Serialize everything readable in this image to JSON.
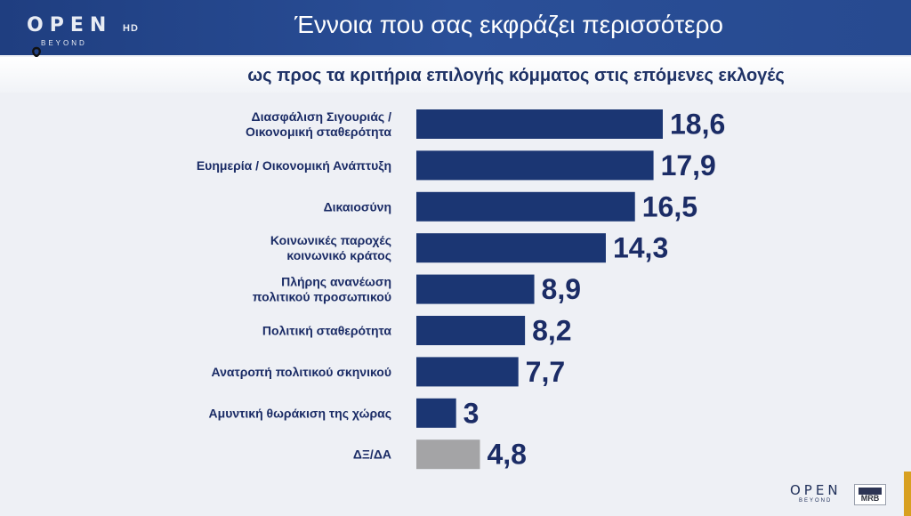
{
  "header": {
    "logo_text": "OPEN",
    "logo_hd": "HD",
    "logo_sub": "BEYOND",
    "title": "Έννοια που σας εκφράζει περισσότερο",
    "subtitle": "ως προς τα κριτήρια επιλογής κόμματος στις επόμενες εκλογές"
  },
  "footer": {
    "logo_text": "OPEN",
    "logo_sub": "BEYOND",
    "badge": "MRB"
  },
  "colors": {
    "header_bg": "#24468c",
    "bar": "#1b3673",
    "bar_dk_da": "#a4a4a6",
    "label": "#1b2c66",
    "value": "#1b2c66"
  },
  "chart_data": {
    "type": "bar",
    "orientation": "horizontal",
    "title": "Έννοια που σας εκφράζει περισσότερο",
    "subtitle": "ως προς τα κριτήρια επιλογής κόμματος στις επόμενες εκλογές",
    "categories": [
      [
        "Διασφάλιση Σιγουριάς /",
        "Οικονομική σταθερότητα"
      ],
      [
        "Ευημερία / Οικονομική Ανάπτυξη"
      ],
      [
        "Δικαιοσύνη"
      ],
      [
        "Κοινωνικές παροχές",
        "κοινωνικό κράτος"
      ],
      [
        "Πλήρης ανανέωση",
        "πολιτικού προσωπικού"
      ],
      [
        "Πολιτική σταθερότητα"
      ],
      [
        "Ανατροπή πολιτικού σκηνικού"
      ],
      [
        "Αμυντική θωράκιση της χώρας"
      ],
      [
        "ΔΞ/ΔΑ"
      ]
    ],
    "values": [
      18.6,
      17.9,
      16.5,
      14.3,
      8.9,
      8.2,
      7.7,
      3,
      4.8
    ],
    "value_labels": [
      "18,6",
      "17,9",
      "16,5",
      "14,3",
      "8,9",
      "8,2",
      "7,7",
      "3",
      "4,8"
    ],
    "highlight_gray": [
      8
    ],
    "grid": false,
    "legend": "none"
  }
}
